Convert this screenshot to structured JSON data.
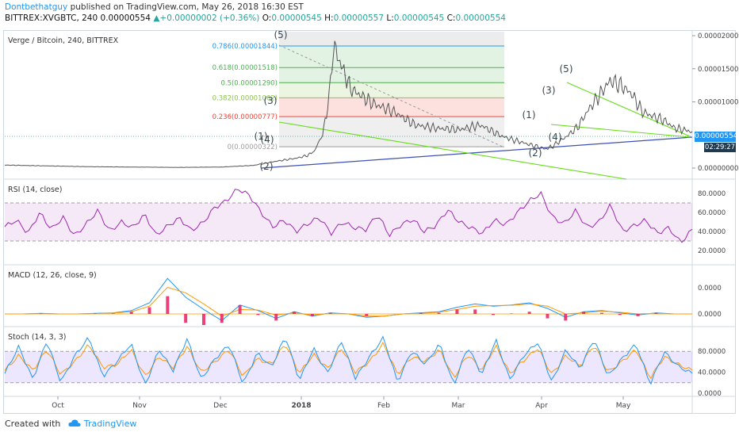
{
  "header": {
    "author": "Dontbethatguy",
    "published": "published on TradingView.com, May 26, 2018 16:30 EST",
    "symbol_line": "BITTREX:XVGBTC, 240",
    "open_price": "0.00000554",
    "change_arrow": "▲",
    "change": "+0.00000002 (+0.36%)",
    "o_label": "O:",
    "o_value": "0.00000545",
    "h_label": "H:",
    "h_value": "0.00000557",
    "l_label": "L:",
    "l_value": "0.00000545",
    "c_label": "C:",
    "c_value": "0.00000554"
  },
  "footer": {
    "created_with": "Created with",
    "brand": "TradingView",
    "logo_icon": "tradingview-cloud-icon"
  },
  "colors": {
    "price": "#555555",
    "rsi": "#9c27b0",
    "macd": "#2196f3",
    "signal": "#ff9800",
    "hist": "#e91e63",
    "stoch_k": "#2196f3",
    "stoch_d": "#ff9800",
    "wedge": "#64dd17",
    "trend": "#3f51b5",
    "accent": "#2196f3"
  },
  "chart_data": [
    {
      "type": "line",
      "title": "Verge / Bitcoin, 240, BITTREX",
      "y_ticks": [
        "0.00002000",
        "0.00001500",
        "0.00001000",
        "0.00000554",
        "0.00000000"
      ],
      "ylim": [
        0,
        2e-05
      ],
      "last_price_label": "0.00000554",
      "countdown_label": "02:29:27",
      "x_ticks": [
        "Oct",
        "Nov",
        "Dec",
        "2018",
        "Feb",
        "Mar",
        "Apr",
        "May"
      ],
      "series": [
        {
          "x": [
            0,
            40,
            80,
            100,
            115,
            125,
            135,
            140,
            143,
            147,
            150,
            152,
            160,
            170,
            180,
            190,
            200,
            210,
            220,
            230,
            240,
            250,
            253,
            260,
            265,
            270,
            275,
            280,
            285,
            290,
            295,
            300,
            305,
            310,
            318
          ],
          "values": [
            4.5e-07,
            2e-07,
            1e-07,
            1.5e-07,
            4e-07,
            1e-06,
            1.5e-06,
            1.9e-06,
            2.5e-06,
            5e-06,
            1.05e-05,
            1.85e-05,
            1.2e-05,
            9.8e-06,
            8.5e-06,
            6.5e-06,
            6e-06,
            5.8e-06,
            6.5e-06,
            4.8e-06,
            3.8e-06,
            2.9e-06,
            3.2e-06,
            4.8e-06,
            6.2e-06,
            8.8e-06,
            1.1e-05,
            1.32e-05,
            1.25e-05,
            1.12e-05,
            8.5e-06,
            7.8e-06,
            7.2e-06,
            6e-06,
            5.54e-06
          ]
        }
      ],
      "fib_levels": [
        {
          "label": "0.786(0.00001844)",
          "value": 1.844e-05,
          "color": "#2196f3"
        },
        {
          "label": "0.618(0.00001518)",
          "value": 1.518e-05,
          "color": "#4caf50"
        },
        {
          "label": "0.5(0.00001290)",
          "value": 1.29e-05,
          "color": "#4caf50"
        },
        {
          "label": "0.382(0.00001062)",
          "value": 1.062e-05,
          "color": "#8bc34a"
        },
        {
          "label": "0.236(0.00000777)",
          "value": 7.77e-06,
          "color": "#f44336"
        },
        {
          "label": "0(0.00000322)",
          "value": 3.22e-06,
          "color": "#9e9e9e"
        }
      ],
      "wave_labels": [
        "(1)",
        "(2)",
        "(3)",
        "(4)",
        "(5)",
        "(1)",
        "(2)",
        "(3)",
        "(4)",
        "(5)"
      ]
    },
    {
      "type": "line",
      "title": "RSI (14, close)",
      "y_ticks": [
        "80.0000",
        "60.0000",
        "40.0000",
        "20.0000"
      ],
      "ylim": [
        10,
        90
      ],
      "band": [
        30,
        70
      ],
      "series": [
        {
          "name": "RSI",
          "values": [
            45,
            52,
            38,
            60,
            42,
            55,
            35,
            48,
            62,
            40,
            50,
            44,
            58,
            36,
            46,
            54,
            41,
            49,
            65,
            72,
            85,
            78,
            60,
            45,
            52,
            40,
            48,
            55,
            38,
            50,
            44,
            42,
            58,
            36,
            47,
            53,
            40,
            46,
            63,
            50,
            44,
            38,
            52,
            47,
            60,
            72,
            80,
            55,
            48,
            62,
            44,
            50,
            68,
            40,
            46,
            52,
            38,
            44,
            28,
            42
          ]
        }
      ]
    },
    {
      "type": "line",
      "title": "MACD (12, 26, close, 9)",
      "y_ticks": [
        "0.0000",
        "0.0000"
      ],
      "series": [
        {
          "name": "MACD",
          "values": [
            0,
            0,
            0.05,
            0,
            0,
            0.05,
            0.1,
            0.3,
            1.0,
            3.2,
            1.5,
            0.4,
            -0.6,
            0.8,
            0.3,
            -0.4,
            0.2,
            -0.2,
            0.1,
            0,
            -0.3,
            -0.2,
            0,
            0.1,
            0.2,
            0.6,
            0.9,
            0.7,
            0.8,
            1.0,
            0.5,
            -0.3,
            0.2,
            0.3,
            0.1,
            -0.1,
            0.1,
            0,
            0
          ]
        },
        {
          "name": "Signal",
          "values": [
            0,
            0,
            0.03,
            0,
            0,
            0.03,
            0.08,
            0.2,
            0.7,
            2.4,
            1.9,
            0.9,
            -0.2,
            0.4,
            0.35,
            -0.1,
            0.1,
            -0.1,
            0.05,
            0,
            -0.2,
            -0.2,
            0,
            0.05,
            0.15,
            0.4,
            0.7,
            0.75,
            0.78,
            0.9,
            0.7,
            0.0,
            0.1,
            0.25,
            0.15,
            0,
            0.05,
            0,
            0
          ]
        }
      ]
    },
    {
      "type": "line",
      "title": "Stoch (14, 3, 3)",
      "y_ticks": [
        "80.0000",
        "40.0000",
        "0.0000"
      ],
      "ylim": [
        0,
        100
      ],
      "band": [
        20,
        80
      ],
      "series": [
        {
          "name": "%K",
          "values": [
            30,
            75,
            20,
            85,
            15,
            60,
            90,
            25,
            50,
            80,
            10,
            70,
            35,
            88,
            20,
            55,
            78,
            12,
            65,
            40,
            92,
            18,
            72,
            30,
            84,
            22,
            58,
            90,
            15,
            68,
            45,
            80,
            10,
            75,
            28,
            86,
            20,
            60,
            82,
            15,
            70,
            38,
            88,
            25,
            55,
            79,
            12,
            66,
            42,
            30
          ]
        },
        {
          "name": "%D",
          "values": [
            35,
            60,
            35,
            70,
            28,
            50,
            78,
            40,
            45,
            70,
            25,
            58,
            40,
            75,
            32,
            50,
            70,
            25,
            55,
            45,
            80,
            30,
            62,
            38,
            72,
            32,
            50,
            80,
            28,
            58,
            50,
            70,
            22,
            62,
            35,
            76,
            30,
            52,
            72,
            28,
            60,
            42,
            78,
            32,
            50,
            70,
            22,
            58,
            45,
            35
          ]
        }
      ]
    }
  ]
}
